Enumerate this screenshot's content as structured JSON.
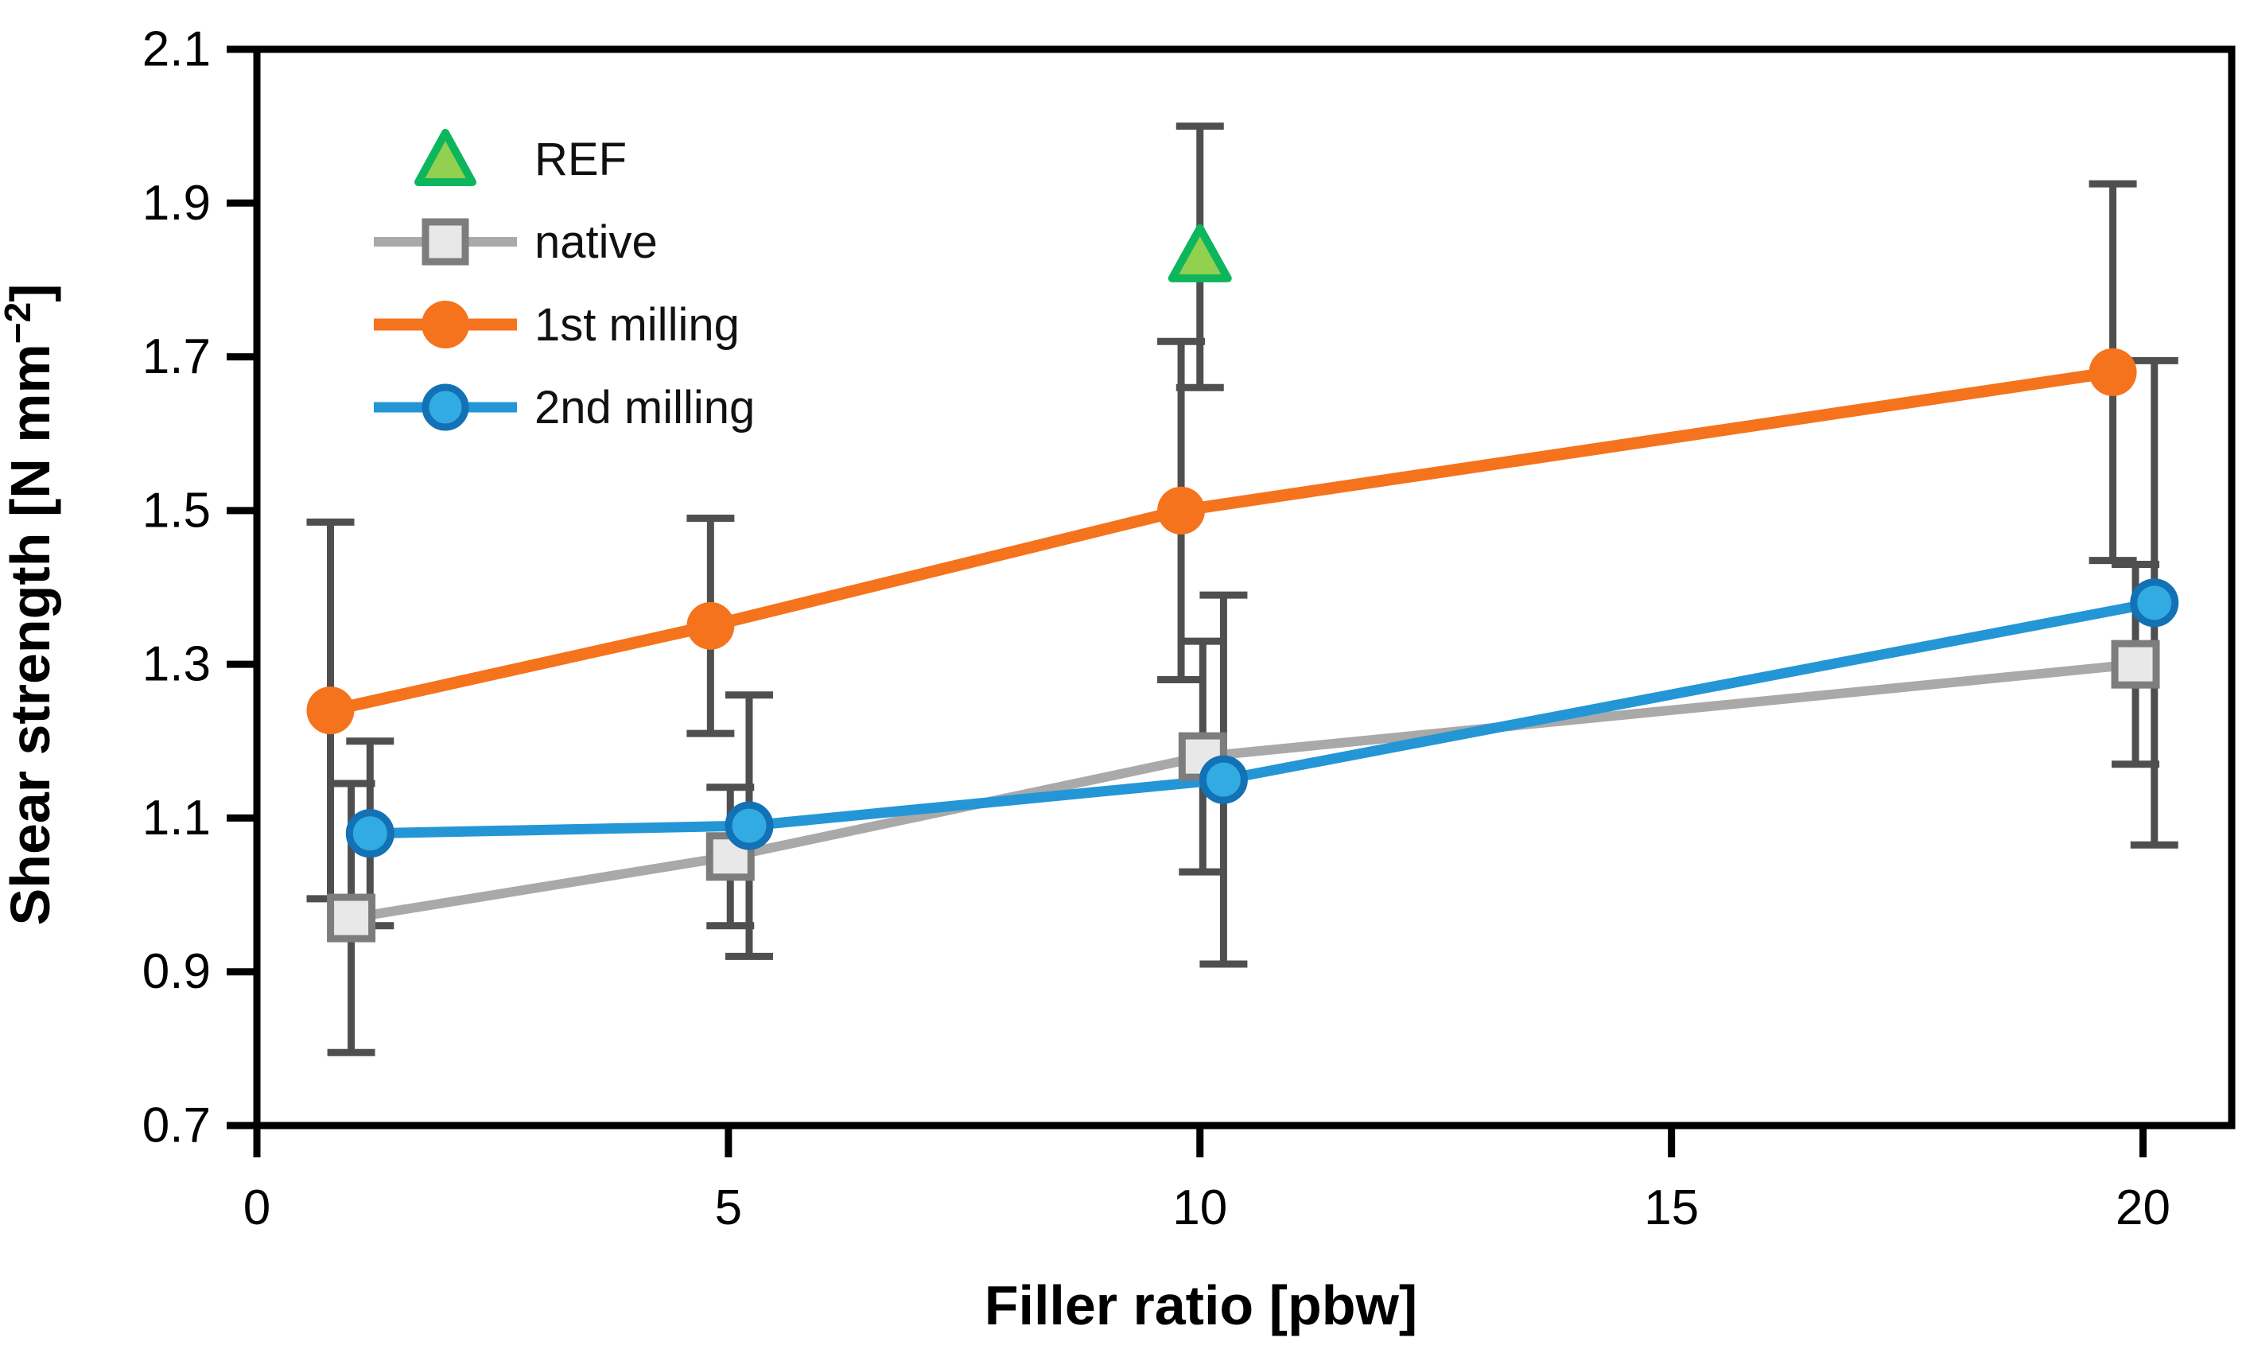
{
  "figure": {
    "background": "#ffffff",
    "frame_color": "#000000"
  },
  "legend": {
    "items": [
      {
        "label": "REF"
      },
      {
        "label": "native"
      },
      {
        "label": "1st milling"
      },
      {
        "label": "2nd milling"
      }
    ]
  },
  "chart_data": {
    "type": "line",
    "title": "",
    "xlabel": "Filler ratio [pbw]",
    "ylabel": "Shear strength [N mm−2]",
    "ylabel_parts": {
      "main": "Shear strength [N mm",
      "sup": "−2",
      "end": "]"
    },
    "xlim": [
      0,
      20.94
    ],
    "ylim": [
      0.7,
      2.1
    ],
    "grid": false,
    "legend_position": "top-left-inside",
    "xtick_values": [
      0,
      5,
      10,
      15,
      20
    ],
    "xtick_labels": [
      "0",
      "5",
      "10",
      "15",
      "20"
    ],
    "ytick_values": [
      0.7,
      0.9,
      1.1,
      1.3,
      1.5,
      1.7,
      1.9,
      2.1
    ],
    "ytick_labels": [
      "0.7",
      "0.9",
      "1.1",
      "1.3",
      "1.5",
      "1.7",
      "1.9",
      "2.1"
    ],
    "errorbar_color": "#4f4f4f",
    "series": [
      {
        "name": "REF",
        "type": "scatter",
        "marker": "triangle",
        "marker_fill": "#92d050",
        "marker_stroke": "#0db65c",
        "x": [
          10.0
        ],
        "y": [
          1.83
        ],
        "yerr": [
          0.17
        ]
      },
      {
        "name": "native",
        "type": "line",
        "marker": "square",
        "line_color": "#a9a9a9",
        "line_width": 12,
        "marker_fill": "#e8e8e8",
        "marker_stroke": "#7d7d7d",
        "x": [
          1.0,
          5.02,
          10.03,
          19.92
        ],
        "y": [
          0.97,
          1.05,
          1.18,
          1.3
        ],
        "yerr": [
          0.175,
          0.09,
          0.15,
          0.13
        ]
      },
      {
        "name": "1st milling",
        "type": "line",
        "marker": "circle",
        "line_color": "#f5731d",
        "line_width": 15,
        "marker_fill": "#f5731d",
        "marker_stroke": "none",
        "x": [
          0.78,
          4.81,
          9.8,
          19.68
        ],
        "y": [
          1.24,
          1.35,
          1.5,
          1.68
        ],
        "yerr": [
          0.245,
          0.14,
          0.22,
          0.245
        ]
      },
      {
        "name": "2nd milling",
        "type": "line",
        "marker": "circle-outlined",
        "line_color": "#2496d5",
        "line_width": 13,
        "marker_fill": "#31abe2",
        "marker_stroke": "#1371b5",
        "x": [
          1.2,
          5.22,
          10.25,
          20.12
        ],
        "y": [
          1.08,
          1.09,
          1.15,
          1.38
        ],
        "yerr": [
          0.12,
          0.17,
          0.24,
          0.315
        ]
      }
    ]
  }
}
